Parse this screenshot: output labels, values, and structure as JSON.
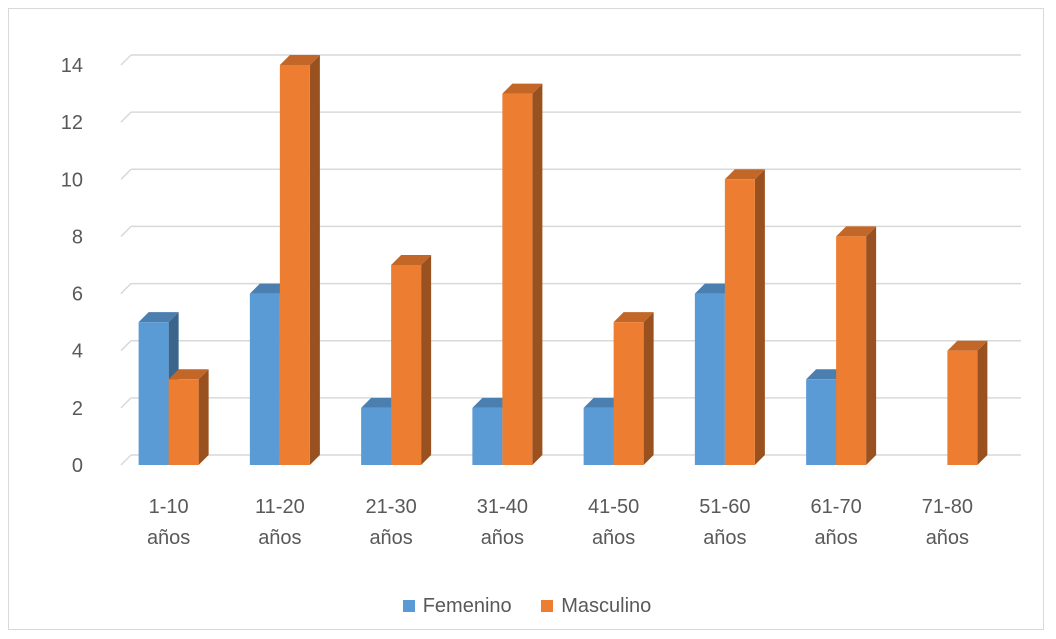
{
  "chart_data": {
    "type": "bar",
    "style": "3d-clustered-column",
    "categories": [
      "1-10 años",
      "11-20 años",
      "21-30 años",
      "31-40 años",
      "41-50 años",
      "51-60 años",
      "61-70 años",
      "71-80 años"
    ],
    "category_lines": [
      [
        "1-10",
        "años"
      ],
      [
        "11-20",
        "años"
      ],
      [
        "21-30",
        "años"
      ],
      [
        "31-40",
        "años"
      ],
      [
        "41-50",
        "años"
      ],
      [
        "51-60",
        "años"
      ],
      [
        "61-70",
        "años"
      ],
      [
        "71-80",
        "años"
      ]
    ],
    "series": [
      {
        "name": "Femenino",
        "values": [
          5,
          6,
          2,
          2,
          2,
          6,
          3,
          0
        ],
        "color": "#5b9bd5"
      },
      {
        "name": "Masculino",
        "values": [
          3,
          14,
          7,
          13,
          5,
          10,
          8,
          4
        ],
        "color": "#ed7d31"
      }
    ],
    "ylim": [
      0,
      14
    ],
    "yticks": [
      0,
      2,
      4,
      6,
      8,
      10,
      12,
      14
    ],
    "grid": true,
    "legend_position": "bottom",
    "title": "",
    "xlabel": "",
    "ylabel": ""
  },
  "colors": {
    "axis_text": "#595959",
    "gridline": "#d9d9d9",
    "border": "#d9d9d9"
  }
}
